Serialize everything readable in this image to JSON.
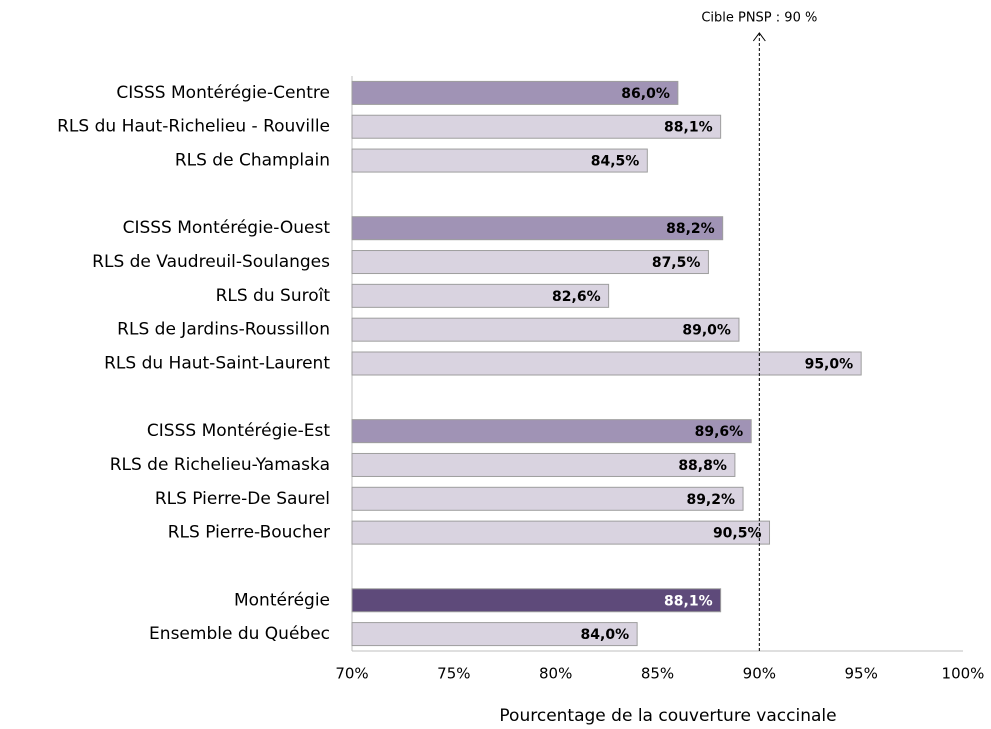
{
  "chart_data": {
    "type": "hbar",
    "xlabel": "Pourcentage de la couverture vaccinale",
    "categories": [
      "CISSS Montérégie-Centre",
      "RLS du Haut-Richelieu - Rouville",
      "RLS de Champlain",
      null,
      "CISSS Montérégie-Ouest",
      "RLS de Vaudreuil-Soulanges",
      "RLS du Suroît",
      "RLS de Jardins-Roussillon",
      "RLS du Haut-Saint-Laurent",
      null,
      "CISSS Montérégie-Est",
      "RLS de Richelieu-Yamaska",
      "RLS Pierre-De Saurel",
      "RLS Pierre-Boucher",
      null,
      "Montérégie",
      "Ensemble du Québec"
    ],
    "values": [
      86.0,
      88.1,
      84.5,
      null,
      88.2,
      87.5,
      82.6,
      89.0,
      95.0,
      null,
      89.6,
      88.8,
      89.2,
      90.5,
      null,
      88.1,
      84.0
    ],
    "value_labels": [
      "86,0%",
      "88,1%",
      "84,5%",
      null,
      "88,2%",
      "87,5%",
      "82,6%",
      "89,0%",
      "95,0%",
      null,
      "89,6%",
      "88,8%",
      "89,2%",
      "90,5%",
      null,
      "88,1%",
      "84,0%"
    ],
    "colors": [
      "#a093b5",
      "#d9d3e0",
      "#d9d3e0",
      null,
      "#a093b5",
      "#d9d3e0",
      "#d9d3e0",
      "#d9d3e0",
      "#d9d3e0",
      null,
      "#a093b5",
      "#d9d3e0",
      "#d9d3e0",
      "#d9d3e0",
      null,
      "#5e4a7a",
      "#d9d3e0"
    ],
    "label_colors": [
      "#000000",
      "#000000",
      "#000000",
      null,
      "#000000",
      "#000000",
      "#000000",
      "#000000",
      "#000000",
      null,
      "#000000",
      "#000000",
      "#000000",
      "#000000",
      null,
      "#ffffff",
      "#000000"
    ],
    "xlim": [
      70,
      100
    ],
    "xticks": [
      {
        "value": 70,
        "label": "70%"
      },
      {
        "value": 75,
        "label": "75%"
      },
      {
        "value": 80,
        "label": "80%"
      },
      {
        "value": 85,
        "label": "85%"
      },
      {
        "value": 90,
        "label": "90%"
      },
      {
        "value": 95,
        "label": "95%"
      },
      {
        "value": 100,
        "label": "100%"
      }
    ],
    "target": {
      "value": 90,
      "label": "Cible PNSP : 90 %"
    }
  }
}
